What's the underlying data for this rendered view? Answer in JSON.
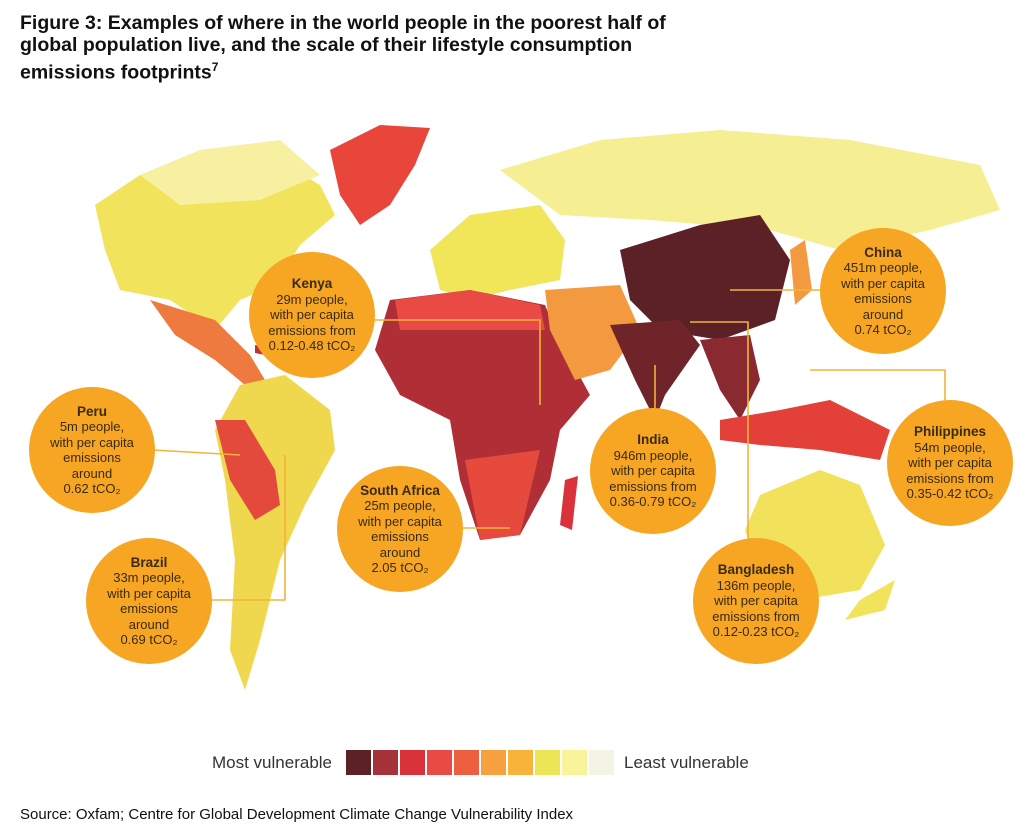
{
  "title": "Figure 3: Examples of where in the world people in the poorest half of global population live, and the scale of their lifestyle consumption emissions footprints",
  "title_footnote": "7",
  "callouts": [
    {
      "name": "Kenya",
      "lines": [
        "29m people,",
        "with per capita",
        "emissions from",
        "0.12-0.48 tCO₂"
      ]
    },
    {
      "name": "Peru",
      "lines": [
        "5m people,",
        "with per capita",
        "emissions",
        "around",
        "0.62 tCO₂"
      ]
    },
    {
      "name": "Brazil",
      "lines": [
        "33m people,",
        "with per capita",
        "emissions",
        "around",
        "0.69 tCO₂"
      ]
    },
    {
      "name": "South Africa",
      "lines": [
        "25m people,",
        "with per capita",
        "emissions",
        "around",
        "2.05 tCO₂"
      ]
    },
    {
      "name": "India",
      "lines": [
        "946m people,",
        "with per capita",
        "emissions from",
        "0.36-0.79 tCO₂"
      ]
    },
    {
      "name": "Bangladesh",
      "lines": [
        "136m people,",
        "with per capita",
        "emissions from",
        "0.12-0.23 tCO₂"
      ]
    },
    {
      "name": "China",
      "lines": [
        "451m people,",
        "with per capita",
        "emissions",
        "around",
        "0.74 tCO₂"
      ]
    },
    {
      "name": "Philippines",
      "lines": [
        "54m people,",
        "with per capita",
        "emissions from",
        "0.35-0.42 tCO₂"
      ]
    }
  ],
  "legend": {
    "left_label": "Most vulnerable",
    "right_label": "Least vulnerable",
    "colors": [
      "#5c2126",
      "#a6323a",
      "#d9323a",
      "#ea4a44",
      "#ee5f3f",
      "#f6a040",
      "#f7b33a",
      "#ece556",
      "#f9f49a",
      "#f3f4e4"
    ]
  },
  "callout_color": "#f6a623",
  "source": "Source: Oxfam; Centre for Global Development Climate Change Vulnerability Index"
}
